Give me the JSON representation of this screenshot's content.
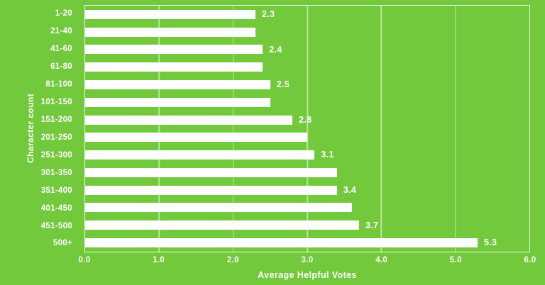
{
  "page": {
    "background_color": "#73c93c"
  },
  "chart_data": {
    "type": "bar",
    "orientation": "horizontal",
    "title": "",
    "xlabel": "Average Helpful Votes",
    "ylabel": "Character count",
    "categories": [
      "1-20",
      "21-40",
      "41-60",
      "61-80",
      "81-100",
      "101-150",
      "151-200",
      "201-250",
      "251-300",
      "301-350",
      "351-400",
      "401-450",
      "451-500",
      "500+"
    ],
    "values": [
      2.3,
      2.3,
      2.4,
      2.4,
      2.5,
      2.5,
      2.8,
      3.0,
      3.1,
      3.4,
      3.4,
      3.6,
      3.7,
      5.3
    ],
    "bar_labels": [
      "2.3",
      "",
      "2.4",
      "",
      "2.5",
      "",
      "2.8",
      "",
      "3.1",
      "",
      "3.4",
      "",
      "3.7",
      "5.3"
    ],
    "x_ticks": [
      "0.0",
      "1.0",
      "2.0",
      "3.0",
      "4.0",
      "5.0",
      "6.0"
    ],
    "xlim": [
      0,
      6
    ],
    "grid": "vertical-gridlines-inside-plot",
    "legend": "none",
    "colors": {
      "background": "#73c93c",
      "bar": "#ffffff",
      "text": "#ffffff",
      "gridline": "rgba(255,255,255,0.5)",
      "frame": "rgba(255,255,255,0.85)"
    }
  }
}
